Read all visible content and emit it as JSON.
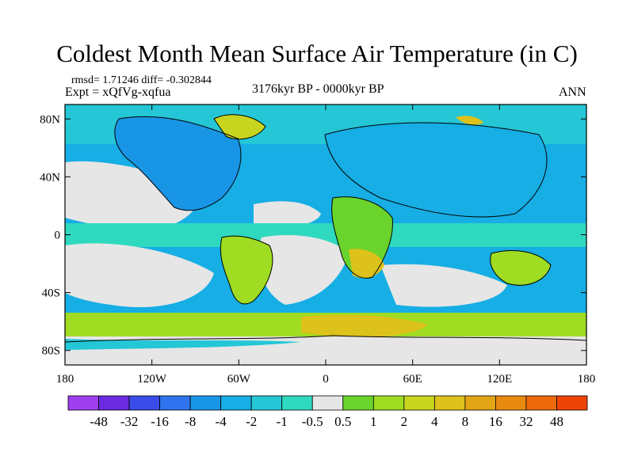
{
  "title": "Coldest Month Mean Surface Air Temperature (in C)",
  "stats": "rmsd= 1.71246  diff= -0.302844",
  "experiment": "Expt = xQfVg-xqfua",
  "period": "3176kyr BP - 0000kyr BP",
  "season": "ANN",
  "axes": {
    "lat_ticks": [
      {
        "label": "80N",
        "value": 80
      },
      {
        "label": "40N",
        "value": 40
      },
      {
        "label": "0",
        "value": 0
      },
      {
        "label": "40S",
        "value": -40
      },
      {
        "label": "80S",
        "value": -80
      }
    ],
    "lon_ticks": [
      {
        "label": "180",
        "value": -180
      },
      {
        "label": "120W",
        "value": -120
      },
      {
        "label": "60W",
        "value": -60
      },
      {
        "label": "0",
        "value": 0
      },
      {
        "label": "60E",
        "value": 60
      },
      {
        "label": "120E",
        "value": 120
      },
      {
        "label": "180",
        "value": 180
      }
    ],
    "lon_range": [
      -180,
      180
    ],
    "lat_range": [
      -90,
      90
    ]
  },
  "colorbar": {
    "colors": [
      "#9f3ff0",
      "#6b2be0",
      "#3a4de8",
      "#2f73ee",
      "#1995e6",
      "#16aee4",
      "#25c7d6",
      "#2fd9bf",
      "#e6e6e6",
      "#6ad42d",
      "#9fdc22",
      "#c8d51f",
      "#dcc21a",
      "#e1a515",
      "#e98a10",
      "#ed6a0c",
      "#ee4406"
    ],
    "labels": [
      "-48",
      "-32",
      "-16",
      "-8",
      "-4",
      "-2",
      "-1",
      "-0.5",
      "0.5",
      "1",
      "2",
      "4",
      "8",
      "16",
      "32",
      "48"
    ]
  },
  "colors": {
    "neutral": "#e6e6e6",
    "slight_cool": "#2fd9bf",
    "cool": "#25c7d6",
    "cooler": "#16aee4",
    "cold": "#1995e6",
    "slight_warm": "#6ad42d",
    "warm": "#9fdc22",
    "warmer": "#c8d51f",
    "hot": "#dcc21a",
    "hotter": "#e98a10",
    "coastline": "#000000"
  }
}
